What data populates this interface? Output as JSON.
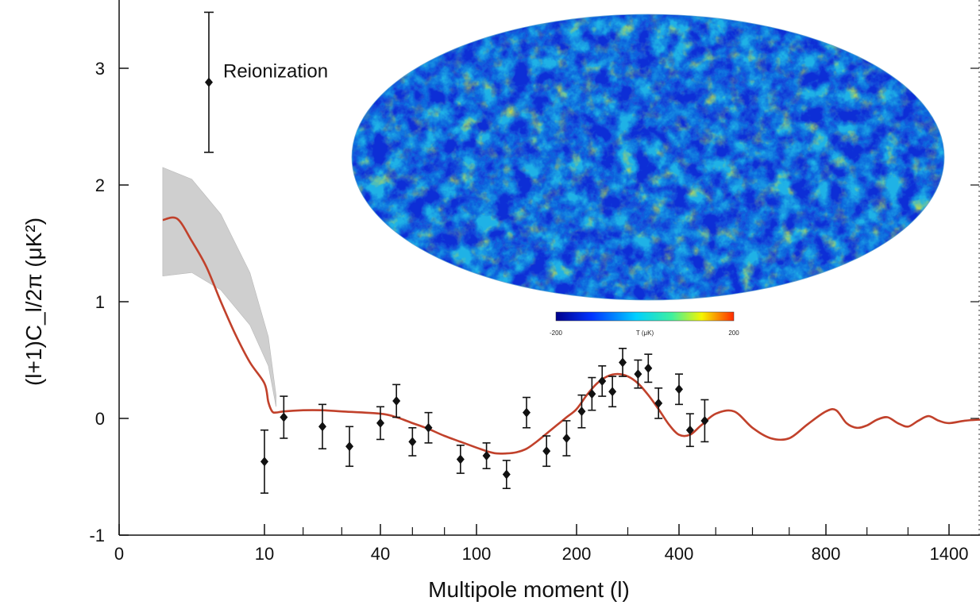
{
  "chart_data": {
    "type": "scatter",
    "title": "",
    "xlabel": "Multipole moment (l)",
    "ylabel": "(l+1)C_l/2π (μK²)",
    "ylim": [
      -1,
      3.5
    ],
    "yticks": [
      -1,
      0,
      1,
      2,
      3
    ],
    "xticks": [
      "0",
      "10",
      "40",
      "100",
      "200",
      "400",
      "800",
      "1400"
    ],
    "xscale": "nonlinear (compressed at high l)",
    "grid": false,
    "legend": "none",
    "annotations": [
      {
        "text": "Reionization",
        "point": {
          "y": 2.88,
          "err_low": 0.6,
          "err_high": 0.6
        }
      }
    ],
    "colorbar": {
      "labels": [
        "-200",
        "T (μK)",
        "200"
      ]
    },
    "model_band": {
      "x": [
        3,
        5,
        7,
        9,
        11,
        13
      ],
      "upper": [
        2.15,
        2.05,
        1.75,
        1.25,
        0.7,
        0.2
      ],
      "lower": [
        1.22,
        1.25,
        1.1,
        0.8,
        0.45,
        0.1
      ]
    },
    "series": [
      {
        "type": "line",
        "color": "#c1412b",
        "x": [
          3,
          4,
          5,
          6,
          7,
          8,
          9,
          10,
          11,
          12,
          13,
          15,
          20,
          25,
          30,
          40,
          50,
          60,
          70,
          80,
          90,
          100,
          110,
          120,
          130,
          140,
          150,
          160,
          170,
          180,
          190,
          200,
          220,
          240,
          260,
          280,
          300,
          320,
          340,
          360,
          380,
          400,
          430,
          460,
          500,
          550,
          600,
          650,
          700,
          750,
          800,
          850,
          900,
          950,
          1000,
          1050,
          1100,
          1150,
          1200,
          1250,
          1300,
          1350,
          1400,
          1450,
          1500
        ],
        "y": [
          1.7,
          1.71,
          1.52,
          1.3,
          1.0,
          0.72,
          0.48,
          0.3,
          0.14,
          0.06,
          0.05,
          0.06,
          0.07,
          0.07,
          0.06,
          0.04,
          0.01,
          -0.04,
          -0.09,
          -0.15,
          -0.2,
          -0.25,
          -0.28,
          -0.3,
          -0.3,
          -0.29,
          -0.26,
          -0.2,
          -0.13,
          -0.06,
          0.01,
          0.08,
          0.2,
          0.3,
          0.36,
          0.38,
          0.36,
          0.3,
          0.2,
          0.08,
          -0.05,
          -0.14,
          -0.14,
          -0.06,
          0.04,
          0.06,
          -0.08,
          -0.17,
          -0.17,
          -0.05,
          0.06,
          0.07,
          -0.04,
          -0.08,
          -0.06,
          -0.01,
          0.01,
          -0.04,
          -0.07,
          -0.02,
          0.02,
          -0.02,
          -0.04,
          -0.02,
          -0.01
        ]
      },
      {
        "type": "errorbar",
        "color": "#111111",
        "points": [
          {
            "x": 10,
            "y": -0.37,
            "err": 0.27
          },
          {
            "x": 15,
            "y": 0.01,
            "err": 0.18
          },
          {
            "x": 25,
            "y": -0.07,
            "err": 0.19
          },
          {
            "x": 32,
            "y": -0.24,
            "err": 0.17
          },
          {
            "x": 40,
            "y": -0.04,
            "err": 0.14
          },
          {
            "x": 50,
            "y": 0.15,
            "err": 0.14
          },
          {
            "x": 60,
            "y": -0.2,
            "err": 0.12
          },
          {
            "x": 70,
            "y": -0.08,
            "err": 0.13
          },
          {
            "x": 90,
            "y": -0.35,
            "err": 0.12
          },
          {
            "x": 110,
            "y": -0.32,
            "err": 0.11
          },
          {
            "x": 130,
            "y": -0.48,
            "err": 0.12
          },
          {
            "x": 150,
            "y": 0.05,
            "err": 0.13
          },
          {
            "x": 170,
            "y": -0.28,
            "err": 0.13
          },
          {
            "x": 190,
            "y": -0.17,
            "err": 0.15
          },
          {
            "x": 210,
            "y": 0.06,
            "err": 0.14
          },
          {
            "x": 230,
            "y": 0.21,
            "err": 0.14
          },
          {
            "x": 250,
            "y": 0.32,
            "err": 0.13
          },
          {
            "x": 270,
            "y": 0.23,
            "err": 0.13
          },
          {
            "x": 290,
            "y": 0.48,
            "err": 0.12
          },
          {
            "x": 320,
            "y": 0.38,
            "err": 0.12
          },
          {
            "x": 340,
            "y": 0.43,
            "err": 0.12
          },
          {
            "x": 360,
            "y": 0.13,
            "err": 0.13
          },
          {
            "x": 400,
            "y": 0.25,
            "err": 0.13
          },
          {
            "x": 430,
            "y": -0.1,
            "err": 0.14
          },
          {
            "x": 470,
            "y": -0.02,
            "err": 0.18
          }
        ]
      }
    ]
  }
}
